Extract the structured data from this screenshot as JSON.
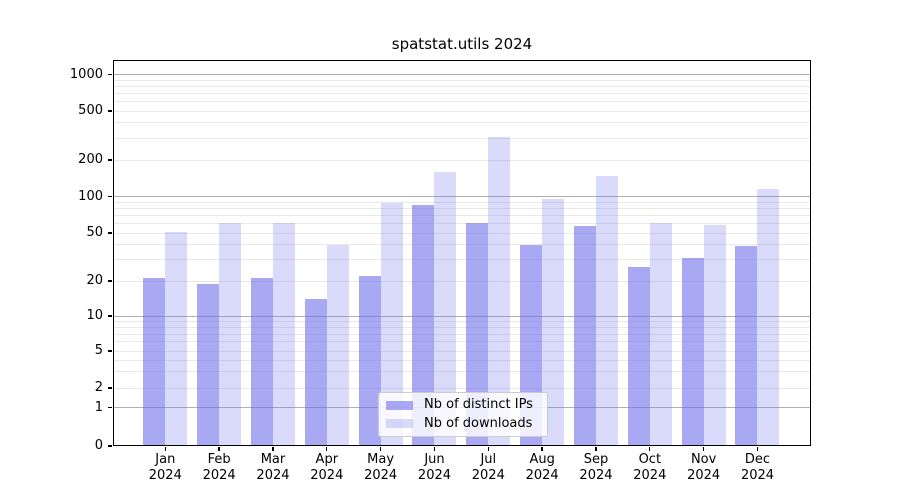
{
  "title": "spatstat.utils 2024",
  "chart_data": {
    "type": "bar",
    "title": "spatstat.utils 2024",
    "categories": [
      "Jan",
      "Feb",
      "Mar",
      "Apr",
      "May",
      "Jun",
      "Jul",
      "Aug",
      "Sep",
      "Oct",
      "Nov",
      "Dec"
    ],
    "x_tick_sublabel": "2024",
    "series": [
      {
        "name": "Nb of distinct IPs",
        "values": [
          21,
          19,
          21,
          14,
          22,
          85,
          60,
          40,
          57,
          26,
          31,
          39
        ]
      },
      {
        "name": "Nb of downloads",
        "values": [
          51,
          61,
          60,
          40,
          88,
          160,
          310,
          95,
          147,
          60,
          58,
          115
        ]
      }
    ],
    "yscale": "log-like with linear 0-1 segment",
    "y_ticks": [
      0,
      1,
      2,
      5,
      10,
      20,
      50,
      100,
      200,
      500,
      1000
    ],
    "ylim": [
      0,
      1300
    ],
    "grid": "horizontal log gridlines, major at powers of 10",
    "legend_position": "inside bottom-center"
  },
  "colors": {
    "bar_distinct_ips": "rgba(111,111,235,0.60)",
    "bar_downloads": "rgba(111,111,235,0.26)",
    "grid_major": "#b0b0b0",
    "grid_minor": "#e9e9e9",
    "axis": "#000000",
    "text": "#000000",
    "legend_bg": "rgba(255,255,255,0.8)",
    "legend_border": "#cccccc"
  }
}
